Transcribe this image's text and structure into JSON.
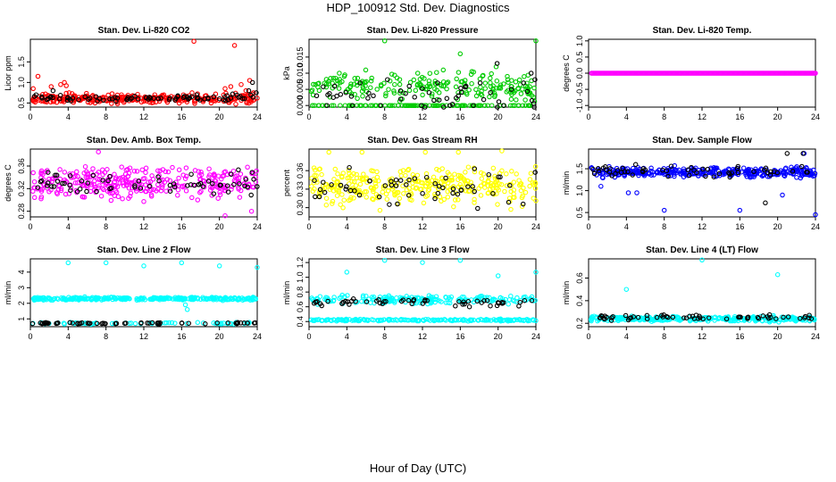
{
  "figure": {
    "title": "HDP_100912  Std. Dev. Diagnostics",
    "xlabel": "Hour of Day (UTC)"
  },
  "colors": {
    "red": "#ff0000",
    "green": "#00cc00",
    "magenta": "#ff00ff",
    "yellow": "#ffff00",
    "blue": "#0000ff",
    "cyan": "#00ffff",
    "black": "#000000"
  },
  "chart_data": [
    {
      "type": "scatter",
      "title": "Stan. Dev. Li-820 CO2",
      "ylabel": "Licor ppm",
      "xlim": [
        0,
        24
      ],
      "xticks": [
        0,
        4,
        8,
        12,
        16,
        20,
        24
      ],
      "ylim": [
        0.4,
        2.05
      ],
      "yticks": [
        0.5,
        1.0,
        1.5
      ],
      "ytick_labels": [
        "0.5",
        "1.0",
        "1.5"
      ],
      "series": [
        {
          "color": "red",
          "x": [
            0.3,
            0.8,
            1.6,
            2.2,
            3.2,
            3.6,
            3.8,
            4.1,
            4.6,
            5.5,
            6.9,
            8.1,
            9.4,
            10.8,
            12.4,
            13.6,
            14.9,
            16.2,
            17.1,
            17.3,
            18.6,
            19.6,
            20.6,
            21.2,
            21.6,
            22.3,
            22.8,
            23.2,
            23.6,
            24.0
          ],
          "y": [
            0.85,
            1.15,
            0.72,
            0.9,
            0.95,
            1.0,
            0.92,
            0.75,
            0.68,
            0.62,
            0.58,
            0.55,
            0.6,
            0.57,
            0.63,
            0.6,
            0.66,
            0.7,
            0.75,
            2.0,
            0.68,
            0.72,
            0.85,
            0.9,
            1.9,
            0.95,
            0.8,
            1.05,
            0.75,
            0.62
          ],
          "base": 0.6,
          "spread": 0.1,
          "count": 300
        },
        {
          "color": "black",
          "x": [
            0.6,
            1.2,
            2.4,
            3.1,
            4.3,
            5.1,
            6.3,
            7.1,
            8.4,
            9.2,
            10.2,
            11.4,
            12.6,
            13.8,
            14.7,
            15.6,
            16.8,
            17.6,
            18.8,
            19.4,
            20.8,
            21.4,
            22.2,
            23.1,
            23.5,
            23.9
          ],
          "y": [
            0.7,
            0.65,
            0.8,
            0.6,
            0.55,
            0.58,
            0.62,
            0.55,
            0.6,
            0.62,
            0.58,
            0.6,
            0.64,
            0.62,
            0.58,
            0.66,
            0.62,
            0.7,
            0.6,
            0.65,
            0.68,
            0.72,
            0.66,
            0.8,
            1.0,
            0.75
          ],
          "base": 0.62,
          "spread": 0.06,
          "count": 60
        }
      ]
    },
    {
      "type": "scatter",
      "title": "Stan. Dev. Li-820 Pressure",
      "ylabel": "kPa",
      "xlim": [
        0,
        24
      ],
      "xticks": [
        0,
        4,
        8,
        12,
        16,
        20,
        24
      ],
      "ylim": [
        -0.0005,
        0.0205
      ],
      "yticks": [
        0.0,
        0.005,
        0.01,
        0.015
      ],
      "ytick_labels": [
        "0.000",
        "0.005",
        "0.010",
        "0.015"
      ],
      "series": [
        {
          "color": "green",
          "x": [
            8.0,
            16.0,
            24.0,
            19.8,
            6.0,
            3.2,
            11.5,
            14.2
          ],
          "y": [
            0.02,
            0.016,
            0.02,
            0.012,
            0.011,
            0.01,
            0.01,
            0.011
          ],
          "base": 0.006,
          "spread": 0.0035,
          "count": 330,
          "zeroband": 0.35
        },
        {
          "color": "black",
          "x": [
            0.8,
            1.9,
            2.7,
            3.9,
            4.6,
            5.4,
            6.8,
            7.6,
            8.3,
            9.7,
            10.6,
            11.9,
            12.7,
            13.6,
            14.9,
            15.8,
            16.6,
            17.4,
            18.1,
            19.2,
            19.9,
            20.6,
            21.4,
            22.7,
            23.5,
            23.9
          ],
          "y": [
            0.003,
            0.0,
            0.006,
            0.004,
            0.0,
            0.007,
            0.003,
            0.0,
            0.008,
            0.002,
            0.006,
            0.0,
            0.004,
            0.007,
            0.0,
            0.003,
            0.006,
            0.0,
            0.007,
            0.004,
            0.013,
            0.0,
            0.005,
            0.007,
            0.01,
            0.008
          ],
          "base": 0.003,
          "spread": 0.003,
          "count": 30
        }
      ]
    },
    {
      "type": "scatter",
      "title": "Stan. Dev. Li-820 Temp.",
      "ylabel": "degrees C",
      "xlim": [
        0,
        24
      ],
      "xticks": [
        0,
        4,
        8,
        12,
        16,
        20,
        24
      ],
      "ylim": [
        -1.05,
        1.05
      ],
      "yticks": [
        -1.0,
        -0.5,
        0.0,
        0.5,
        1.0
      ],
      "ytick_labels": [
        "-1.0",
        "-0.5",
        "0.0",
        "0.5",
        "1.0"
      ],
      "series": [
        {
          "color": "magenta",
          "x": [],
          "y": [],
          "base": 0.0,
          "spread": 0.0,
          "count": 230,
          "dense": true
        }
      ]
    },
    {
      "type": "scatter",
      "title": "Stan. Dev. Amb. Box Temp.",
      "ylabel": "degrees C",
      "xlim": [
        0,
        24
      ],
      "xticks": [
        0,
        4,
        8,
        12,
        16,
        20,
        24
      ],
      "ylim": [
        0.27,
        0.39
      ],
      "yticks": [
        0.28,
        0.32,
        0.36
      ],
      "ytick_labels": [
        "0.28",
        "0.32",
        "0.36"
      ],
      "series": [
        {
          "color": "magenta",
          "x": [
            20.6,
            23.4,
            7.2
          ],
          "y": [
            0.272,
            0.28,
            0.385
          ],
          "base": 0.33,
          "spread": 0.025,
          "count": 320
        },
        {
          "color": "black",
          "x": [],
          "y": [],
          "base": 0.33,
          "spread": 0.02,
          "count": 65
        }
      ]
    },
    {
      "type": "scatter",
      "title": "Stan. Dev. Gas Stream RH",
      "ylabel": "percent",
      "xlim": [
        0,
        24
      ],
      "xticks": [
        0,
        4,
        8,
        12,
        16,
        20,
        24
      ],
      "ylim": [
        0.285,
        0.395
      ],
      "yticks": [
        0.3,
        0.33,
        0.36
      ],
      "ytick_labels": [
        "0.30",
        "0.33",
        "0.36"
      ],
      "series": [
        {
          "color": "yellow",
          "x": [
            2.1,
            5.6,
            12.3,
            15.8,
            20.4
          ],
          "y": [
            0.39,
            0.39,
            0.39,
            0.39,
            0.392
          ],
          "base": 0.335,
          "spread": 0.027,
          "count": 340
        },
        {
          "color": "black",
          "x": [],
          "y": [],
          "base": 0.335,
          "spread": 0.025,
          "count": 55
        }
      ]
    },
    {
      "type": "scatter",
      "title": "Stan. Dev. Sample Flow",
      "ylabel": "ml/min",
      "xlim": [
        0,
        24
      ],
      "xticks": [
        0,
        4,
        8,
        12,
        16,
        20,
        24
      ],
      "ylim": [
        0.4,
        1.95
      ],
      "yticks": [
        0.5,
        1.0,
        1.5
      ],
      "ytick_labels": [
        "0.5",
        "1.0",
        "1.5"
      ],
      "series": [
        {
          "color": "blue",
          "x": [
            8.0,
            16.0,
            24.0,
            4.2,
            5.1,
            1.3,
            20.5,
            22.8
          ],
          "y": [
            0.55,
            0.55,
            0.45,
            0.95,
            0.95,
            1.1,
            0.9,
            1.85
          ],
          "base": 1.42,
          "spread": 0.1,
          "count": 330
        },
        {
          "color": "black",
          "x": [
            18.7,
            21.0,
            22.7
          ],
          "y": [
            0.72,
            1.85,
            1.85
          ],
          "base": 1.45,
          "spread": 0.14,
          "count": 55
        }
      ]
    },
    {
      "type": "scatter",
      "title": "Stan. Dev. Line 2 Flow",
      "ylabel": "ml/min",
      "xlim": [
        0,
        24
      ],
      "xticks": [
        0,
        4,
        8,
        12,
        16,
        20,
        24
      ],
      "ylim": [
        0.5,
        4.85
      ],
      "yticks": [
        1,
        2,
        3,
        4
      ],
      "ytick_labels": [
        "1",
        "2",
        "3",
        "4"
      ],
      "series": [
        {
          "color": "cyan",
          "x": [
            4.0,
            8.0,
            12.0,
            16.0,
            20.0,
            24.0,
            16.6,
            16.4
          ],
          "y": [
            4.6,
            4.6,
            4.4,
            4.6,
            4.4,
            4.3,
            1.6,
            1.9
          ],
          "base": 2.3,
          "spread": 0.08,
          "count": 300,
          "lower": 0.72,
          "lowerCount": 60
        },
        {
          "color": "black",
          "x": [],
          "y": [],
          "base": 0.72,
          "spread": 0.04,
          "count": 60
        }
      ]
    },
    {
      "type": "scatter",
      "title": "Stan. Dev. Line 3 Flow",
      "ylabel": "ml/min",
      "xlim": [
        0,
        24
      ],
      "xticks": [
        0,
        4,
        8,
        12,
        16,
        20,
        24
      ],
      "ylim": [
        0.33,
        1.25
      ],
      "yticks": [
        0.4,
        0.6,
        0.8,
        1.0,
        1.2
      ],
      "ytick_labels": [
        "0.4",
        "0.6",
        "0.8",
        "1.0",
        "1.2"
      ],
      "series": [
        {
          "color": "cyan",
          "x": [
            4.0,
            8.0,
            12.0,
            16.0,
            20.0,
            24.0
          ],
          "y": [
            1.07,
            1.23,
            1.2,
            1.23,
            1.02,
            1.07
          ],
          "base": 0.7,
          "spread": 0.05,
          "count": 180,
          "lower": 0.42,
          "lowerCount": 190
        },
        {
          "color": "black",
          "x": [],
          "y": [],
          "base": 0.66,
          "spread": 0.05,
          "count": 55
        }
      ]
    },
    {
      "type": "scatter",
      "title": "Stan. Dev. Line 4 (LT) Flow",
      "ylabel": "ml/min",
      "xlim": [
        0,
        24
      ],
      "xticks": [
        0,
        4,
        8,
        12,
        16,
        20,
        24
      ],
      "ylim": [
        0.17,
        0.77
      ],
      "yticks": [
        0.2,
        0.4,
        0.6
      ],
      "ytick_labels": [
        "0.2",
        "0.4",
        "0.6"
      ],
      "series": [
        {
          "color": "cyan",
          "x": [
            4.0,
            12.0,
            20.0
          ],
          "y": [
            0.5,
            0.76,
            0.63
          ],
          "base": 0.24,
          "spread": 0.02,
          "count": 300
        },
        {
          "color": "black",
          "x": [],
          "y": [],
          "base": 0.25,
          "spread": 0.02,
          "count": 60
        }
      ]
    }
  ]
}
